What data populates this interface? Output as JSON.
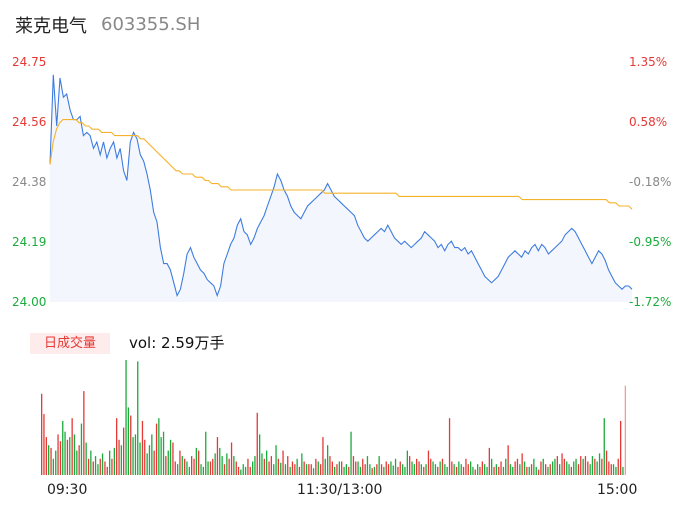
{
  "header": {
    "name": "莱克电气",
    "code": "603355.SH"
  },
  "volume_badge": "日成交量",
  "volume_text": "vol: 2.59万手",
  "colors": {
    "up": "#e53935",
    "down": "#1aab3c",
    "price_line": "#3f7ce0",
    "avg_line": "#f5b32c",
    "neutral": "#888888"
  },
  "chart_data": {
    "type": "line",
    "title": "",
    "ylim": [
      24.0,
      24.75
    ],
    "yticks_left": [
      "24.75",
      "24.56",
      "24.38",
      "24.19",
      "24.00"
    ],
    "yticks_right": [
      "1.35%",
      "0.58%",
      "-0.18%",
      "-0.95%",
      "-1.72%"
    ],
    "xticks": [
      "09:30",
      "11:30/13:00",
      "15:00"
    ],
    "series": [
      {
        "values": [
          24.43,
          24.71,
          24.55,
          24.7,
          24.64,
          24.65,
          24.6,
          24.57,
          24.57,
          24.58,
          24.52,
          24.53,
          24.52,
          24.48,
          24.5,
          24.46,
          24.5,
          24.45,
          24.48,
          24.5,
          24.45,
          24.48,
          24.41,
          24.38,
          24.5,
          24.53,
          24.51,
          24.46,
          24.44,
          24.4,
          24.35,
          24.28,
          24.25,
          24.17,
          24.12,
          24.12,
          24.1,
          24.06,
          24.02,
          24.04,
          24.09,
          24.15,
          24.17,
          24.14,
          24.12,
          24.1,
          24.09,
          24.07,
          24.06,
          24.05,
          24.02,
          24.05,
          24.12,
          24.15,
          24.18,
          24.2,
          24.24,
          24.26,
          24.22,
          24.21,
          24.18,
          24.2,
          24.23,
          24.25,
          24.27,
          24.3,
          24.33,
          24.36,
          24.4,
          24.38,
          24.35,
          24.33,
          24.3,
          24.28,
          24.27,
          24.26,
          24.28,
          24.3,
          24.31,
          24.32,
          24.33,
          24.34,
          24.35,
          24.37,
          24.35,
          24.33,
          24.32,
          24.31,
          24.3,
          24.29,
          24.28,
          24.27,
          24.24,
          24.22,
          24.2,
          24.19,
          24.2,
          24.21,
          24.22,
          24.23,
          24.22,
          24.24,
          24.22,
          24.2,
          24.19,
          24.18,
          24.19,
          24.18,
          24.17,
          24.18,
          24.19,
          24.2,
          24.22,
          24.21,
          24.2,
          24.19,
          24.17,
          24.18,
          24.16,
          24.18,
          24.19,
          24.17,
          24.17,
          24.16,
          24.17,
          24.15,
          24.16,
          24.14,
          24.12,
          24.1,
          24.08,
          24.07,
          24.06,
          24.07,
          24.08,
          24.1,
          24.12,
          24.14,
          24.15,
          24.16,
          24.15,
          24.14,
          24.16,
          24.15,
          24.17,
          24.18,
          24.16,
          24.18,
          24.17,
          24.15,
          24.16,
          24.17,
          24.18,
          24.19,
          24.21,
          24.22,
          24.23,
          24.22,
          24.2,
          24.18,
          24.16,
          24.14,
          24.12,
          24.14,
          24.16,
          24.15,
          24.13,
          24.1,
          24.08,
          24.06,
          24.05,
          24.04,
          24.05,
          24.05,
          24.04
        ]
      },
      {
        "values": [
          24.43,
          24.5,
          24.54,
          24.56,
          24.57,
          24.57,
          24.57,
          24.57,
          24.57,
          24.56,
          24.56,
          24.55,
          24.55,
          24.54,
          24.54,
          24.54,
          24.53,
          24.53,
          24.53,
          24.53,
          24.52,
          24.52,
          24.52,
          24.52,
          24.52,
          24.52,
          24.52,
          24.52,
          24.51,
          24.51,
          24.5,
          24.49,
          24.48,
          24.47,
          24.46,
          24.45,
          24.44,
          24.43,
          24.42,
          24.41,
          24.41,
          24.4,
          24.4,
          24.4,
          24.4,
          24.39,
          24.39,
          24.39,
          24.38,
          24.38,
          24.37,
          24.37,
          24.37,
          24.36,
          24.36,
          24.36,
          24.35,
          24.35,
          24.35,
          24.35,
          24.35,
          24.35,
          24.35,
          24.35,
          24.35,
          24.35,
          24.35,
          24.35,
          24.35,
          24.35,
          24.35,
          24.35,
          24.35,
          24.35,
          24.35,
          24.35,
          24.35,
          24.35,
          24.35,
          24.35,
          24.35,
          24.35,
          24.35,
          24.35,
          24.35,
          24.34,
          24.34,
          24.34,
          24.34,
          24.34,
          24.34,
          24.34,
          24.34,
          24.34,
          24.34,
          24.34,
          24.34,
          24.34,
          24.34,
          24.34,
          24.34,
          24.34,
          24.34,
          24.34,
          24.34,
          24.34,
          24.34,
          24.34,
          24.33,
          24.33,
          24.33,
          24.33,
          24.33,
          24.33,
          24.33,
          24.33,
          24.33,
          24.33,
          24.33,
          24.33,
          24.33,
          24.33,
          24.33,
          24.33,
          24.33,
          24.33,
          24.33,
          24.33,
          24.33,
          24.33,
          24.33,
          24.33,
          24.33,
          24.33,
          24.33,
          24.33,
          24.33,
          24.33,
          24.33,
          24.33,
          24.33,
          24.33,
          24.33,
          24.33,
          24.33,
          24.33,
          24.32,
          24.32,
          24.32,
          24.32,
          24.32,
          24.32,
          24.32,
          24.32,
          24.32,
          24.32,
          24.32,
          24.32,
          24.32,
          24.32,
          24.32,
          24.32,
          24.32,
          24.32,
          24.32,
          24.32,
          24.32,
          24.32,
          24.32,
          24.32,
          24.32,
          24.32,
          24.32,
          24.31,
          24.31,
          24.31,
          24.3,
          24.3,
          24.3,
          24.3,
          24.29
        ]
      }
    ],
    "volume": {
      "values": [
        60,
        45,
        28,
        22,
        20,
        12,
        18,
        30,
        25,
        40,
        32,
        26,
        28,
        42,
        30,
        18,
        22,
        38,
        62,
        24,
        12,
        18,
        10,
        14,
        8,
        12,
        16,
        10,
        6,
        18,
        12,
        20,
        42,
        26,
        22,
        35,
        85,
        50,
        44,
        28,
        30,
        84,
        24,
        40,
        26,
        16,
        22,
        30,
        18,
        38,
        42,
        28,
        32,
        14,
        18,
        26,
        24,
        10,
        8,
        18,
        14,
        12,
        10,
        6,
        14,
        12,
        20,
        18,
        8,
        6,
        32,
        10,
        10,
        12,
        16,
        28,
        20,
        14,
        8,
        16,
        12,
        24,
        14,
        10,
        6,
        4,
        8,
        6,
        12,
        6,
        10,
        14,
        46,
        30,
        16,
        12,
        18,
        10,
        14,
        8,
        22,
        12,
        9,
        18,
        8,
        14,
        6,
        10,
        8,
        12,
        6,
        16,
        10,
        8,
        8,
        8,
        5,
        12,
        10,
        8,
        28,
        12,
        22,
        14,
        10,
        6,
        8,
        10,
        10,
        6,
        8,
        6,
        32,
        14,
        10,
        10,
        6,
        12,
        8,
        14,
        8,
        5,
        6,
        8,
        14,
        8,
        6,
        10,
        8,
        10,
        7,
        12,
        6,
        10,
        8,
        6,
        18,
        14,
        10,
        8,
        12,
        10,
        8,
        6,
        8,
        18,
        12,
        10,
        8,
        6,
        10,
        12,
        8,
        6,
        42,
        10,
        8,
        6,
        10,
        8,
        6,
        12,
        8,
        10,
        6,
        4,
        8,
        6,
        10,
        8,
        6,
        20,
        12,
        6,
        8,
        6,
        10,
        6,
        12,
        22,
        8,
        6,
        10,
        12,
        8,
        16,
        10,
        6,
        6,
        8,
        12,
        6,
        4,
        10,
        12,
        8,
        6,
        8,
        10,
        12,
        14,
        8,
        16,
        12,
        10,
        8,
        6,
        10,
        12,
        8,
        14,
        12,
        14,
        10,
        8,
        14,
        12,
        10,
        16,
        12,
        42,
        18,
        10,
        8,
        8,
        6,
        12,
        40,
        6,
        66
      ],
      "colors": [
        "u",
        "u",
        "u",
        "d",
        "u",
        "d",
        "d",
        "u",
        "u",
        "d",
        "d",
        "u",
        "d",
        "u",
        "d",
        "d",
        "u",
        "d",
        "u",
        "d",
        "u",
        "d",
        "u",
        "d",
        "d",
        "u",
        "d",
        "u",
        "u",
        "d",
        "u",
        "d",
        "u",
        "u",
        "d",
        "u",
        "d",
        "d",
        "u",
        "d",
        "d",
        "d",
        "d",
        "u",
        "u",
        "d",
        "d",
        "d",
        "u",
        "u",
        "d",
        "d",
        "d",
        "u",
        "d",
        "d",
        "u",
        "u",
        "d",
        "u",
        "d",
        "u",
        "d",
        "d",
        "u",
        "u",
        "d",
        "u",
        "d",
        "d",
        "d",
        "d",
        "u",
        "u",
        "d",
        "u",
        "d",
        "d",
        "u",
        "d",
        "u",
        "u",
        "d",
        "u",
        "u",
        "d",
        "d",
        "d",
        "u",
        "u",
        "d",
        "d",
        "u",
        "d",
        "d",
        "u",
        "d",
        "u",
        "u",
        "d",
        "d",
        "u",
        "d",
        "u",
        "d",
        "u",
        "d",
        "u",
        "u",
        "d",
        "u",
        "d",
        "u",
        "d",
        "u",
        "u",
        "d",
        "u",
        "d",
        "u",
        "u",
        "d",
        "d",
        "u",
        "u",
        "d",
        "u",
        "d",
        "u",
        "d",
        "d",
        "u",
        "d",
        "u",
        "u",
        "d",
        "d",
        "u",
        "u",
        "d",
        "d",
        "u",
        "d",
        "u",
        "d",
        "u",
        "d",
        "u",
        "u",
        "d",
        "d",
        "d",
        "u",
        "u",
        "d",
        "d",
        "d",
        "u",
        "d",
        "d",
        "u",
        "u",
        "d",
        "u",
        "d",
        "u",
        "u",
        "d",
        "d",
        "u",
        "d",
        "u",
        "d",
        "d",
        "u",
        "u",
        "d",
        "u",
        "d",
        "d",
        "u",
        "u",
        "u",
        "d",
        "d",
        "u",
        "d",
        "u",
        "u",
        "d",
        "d",
        "u",
        "d",
        "u",
        "d",
        "u",
        "u",
        "d",
        "d",
        "u",
        "d",
        "d",
        "u",
        "u",
        "d",
        "u",
        "d",
        "u",
        "d",
        "u",
        "d",
        "d",
        "u",
        "u",
        "d",
        "u",
        "d",
        "u",
        "d",
        "d",
        "u",
        "d",
        "u",
        "u",
        "d",
        "d",
        "u",
        "d",
        "d",
        "u",
        "u",
        "d",
        "u",
        "u",
        "d",
        "d",
        "u",
        "d",
        "d",
        "u",
        "d",
        "u",
        "u",
        "u",
        "d",
        "d",
        "u",
        "u",
        "d",
        "u"
      ]
    }
  }
}
